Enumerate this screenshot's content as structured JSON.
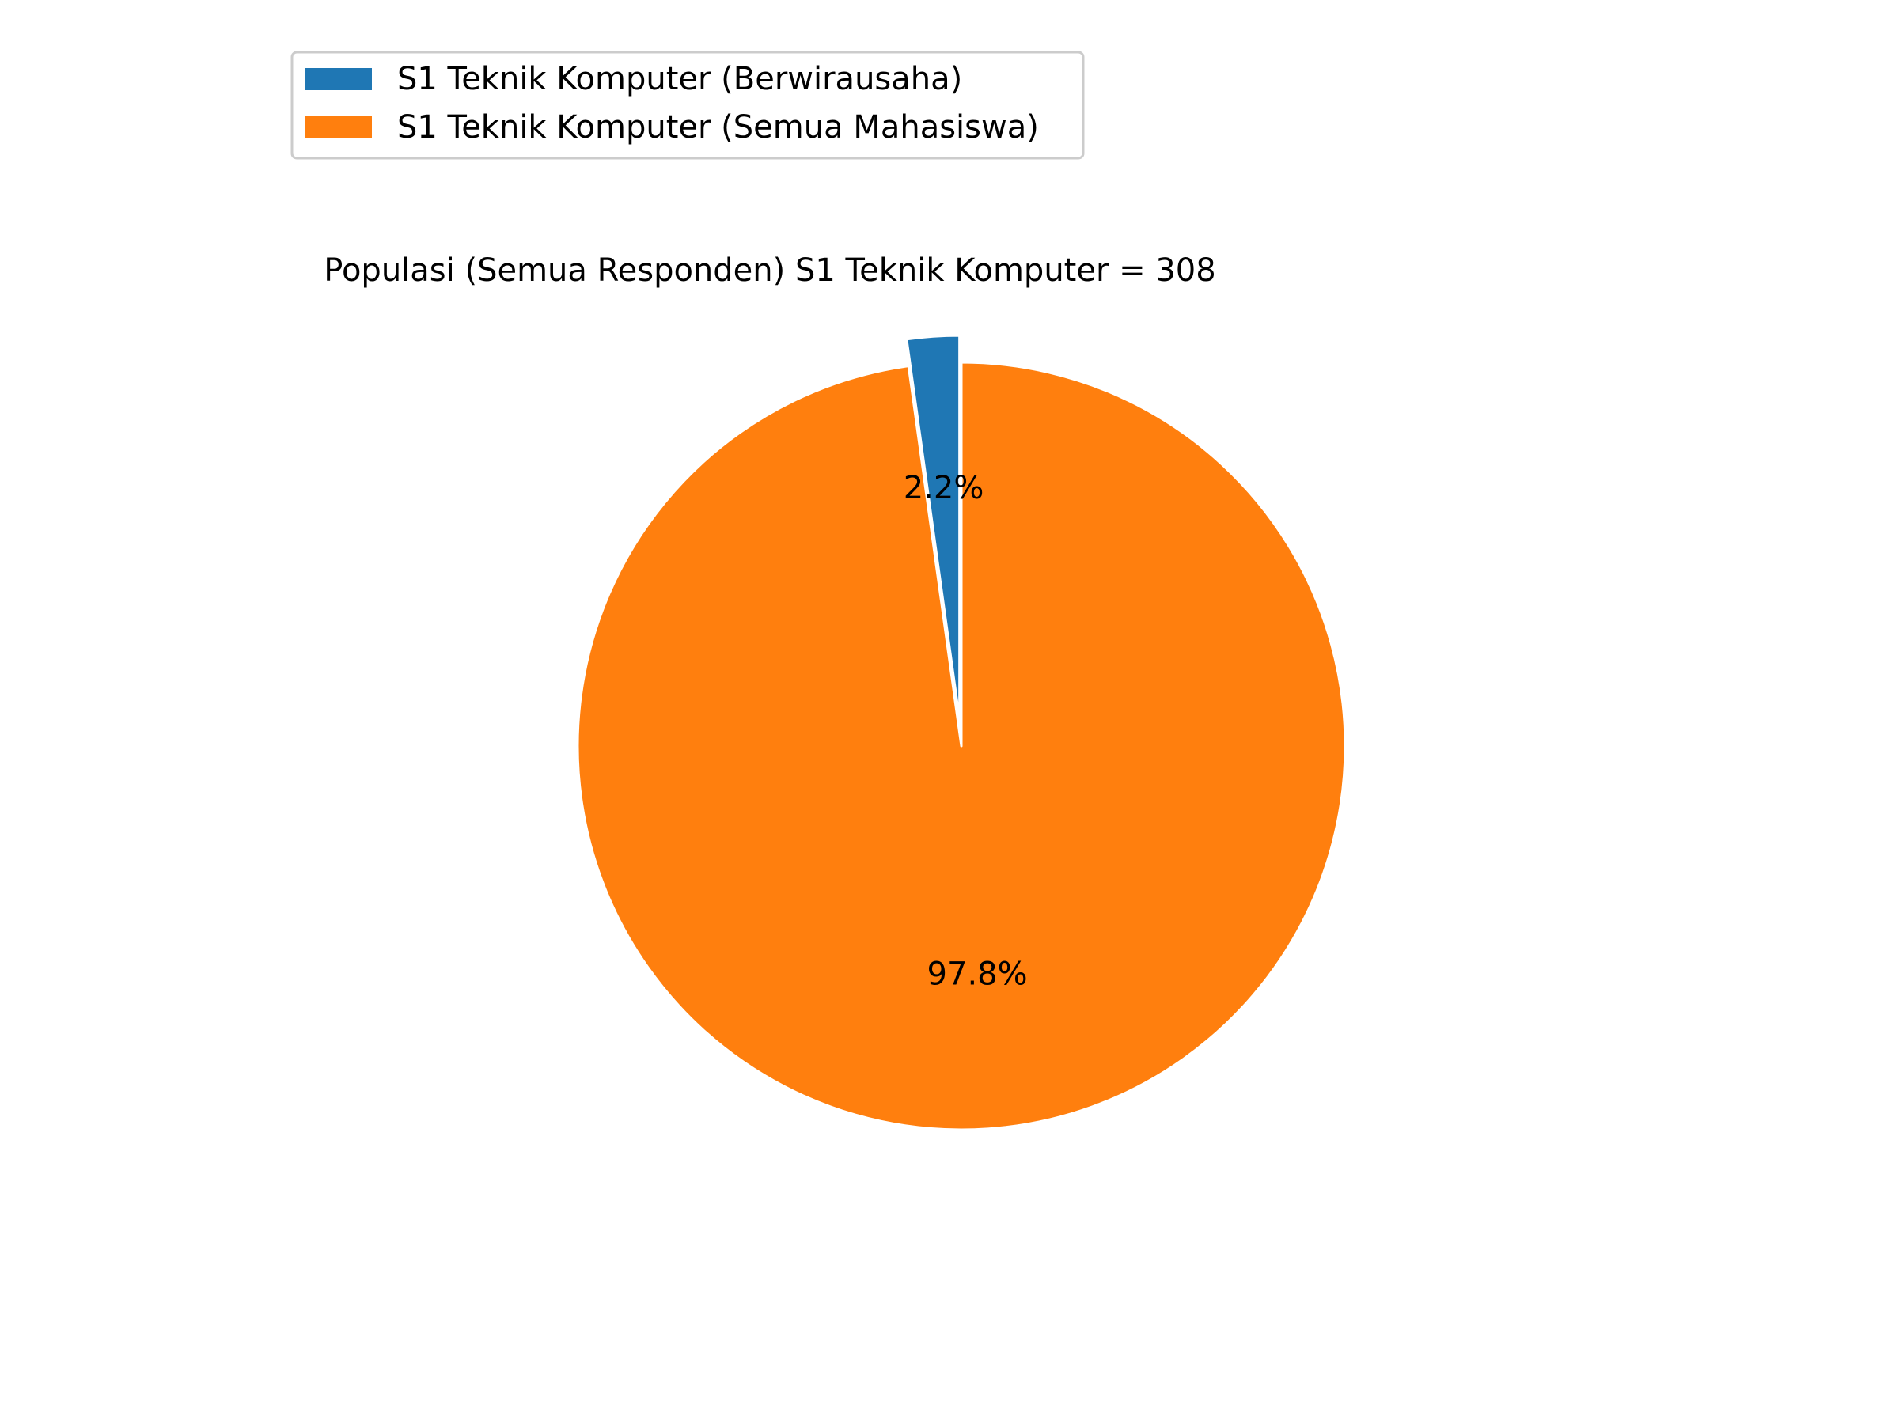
{
  "chart_data": {
    "type": "pie",
    "title": "Populasi (Semua Responden) S1 Teknik Komputer = 308",
    "labels": [
      "S1 Teknik Komputer (Berwirausaha)",
      "S1 Teknik Komputer (Semua Mahasiswa)"
    ],
    "values": [
      2.2,
      97.8
    ],
    "value_labels": [
      "2.2%",
      "97.8%"
    ],
    "colors": [
      "#1f77b4",
      "#ff7f0e"
    ],
    "exploded": [
      true,
      false
    ],
    "start_angle": "top (90°)",
    "direction": "counterclockwise",
    "legend": {
      "placement": "upper-left",
      "entries": [
        "S1 Teknik Komputer (Berwirausaha)",
        "S1 Teknik Komputer (Semua Mahasiswa)"
      ]
    }
  }
}
